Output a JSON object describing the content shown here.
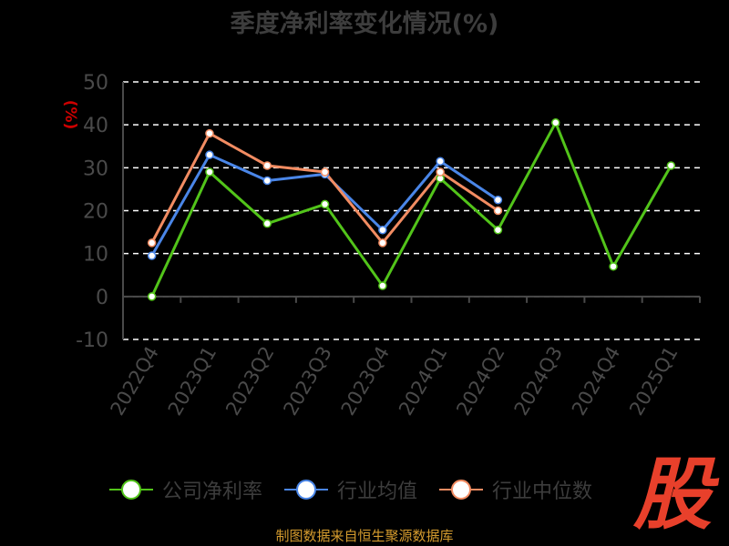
{
  "colors": {
    "background": "#000000",
    "grid": "#ffffff",
    "axis": "#4a4a4a",
    "tick_text": "#4a4a4a",
    "ylabel": "#cc0000",
    "title": "#3d3d3d",
    "source": "#d49b2e",
    "logo": "#e8402b"
  },
  "logo_text": "股",
  "source_text": "制图数据来自恒生聚源数据库",
  "chart_data": {
    "type": "line",
    "title": "季度净利率变化情况(%)",
    "xlabel": "",
    "ylabel": "(%)",
    "ylim": [
      -10,
      50
    ],
    "yticks": [
      -10,
      0,
      10,
      20,
      30,
      40,
      50
    ],
    "grid": true,
    "legend_position": "bottom",
    "categories": [
      "2022Q4",
      "2023Q1",
      "2023Q2",
      "2023Q3",
      "2023Q4",
      "2024Q1",
      "2024Q2",
      "2024Q3",
      "2024Q4",
      "2025Q1"
    ],
    "series": [
      {
        "name": "公司净利率",
        "color": "#52c41a",
        "values": [
          0.0,
          29.0,
          17.0,
          21.5,
          2.5,
          27.5,
          15.5,
          40.5,
          7.0,
          30.5
        ]
      },
      {
        "name": "行业均值",
        "color": "#4a86e8",
        "values": [
          9.5,
          33.0,
          27.0,
          28.5,
          15.5,
          31.5,
          22.5,
          null,
          null,
          null
        ]
      },
      {
        "name": "行业中位数",
        "color": "#f28c62",
        "values": [
          12.5,
          38.0,
          30.5,
          29.0,
          12.5,
          29.0,
          20.0,
          null,
          null,
          null
        ]
      }
    ]
  }
}
